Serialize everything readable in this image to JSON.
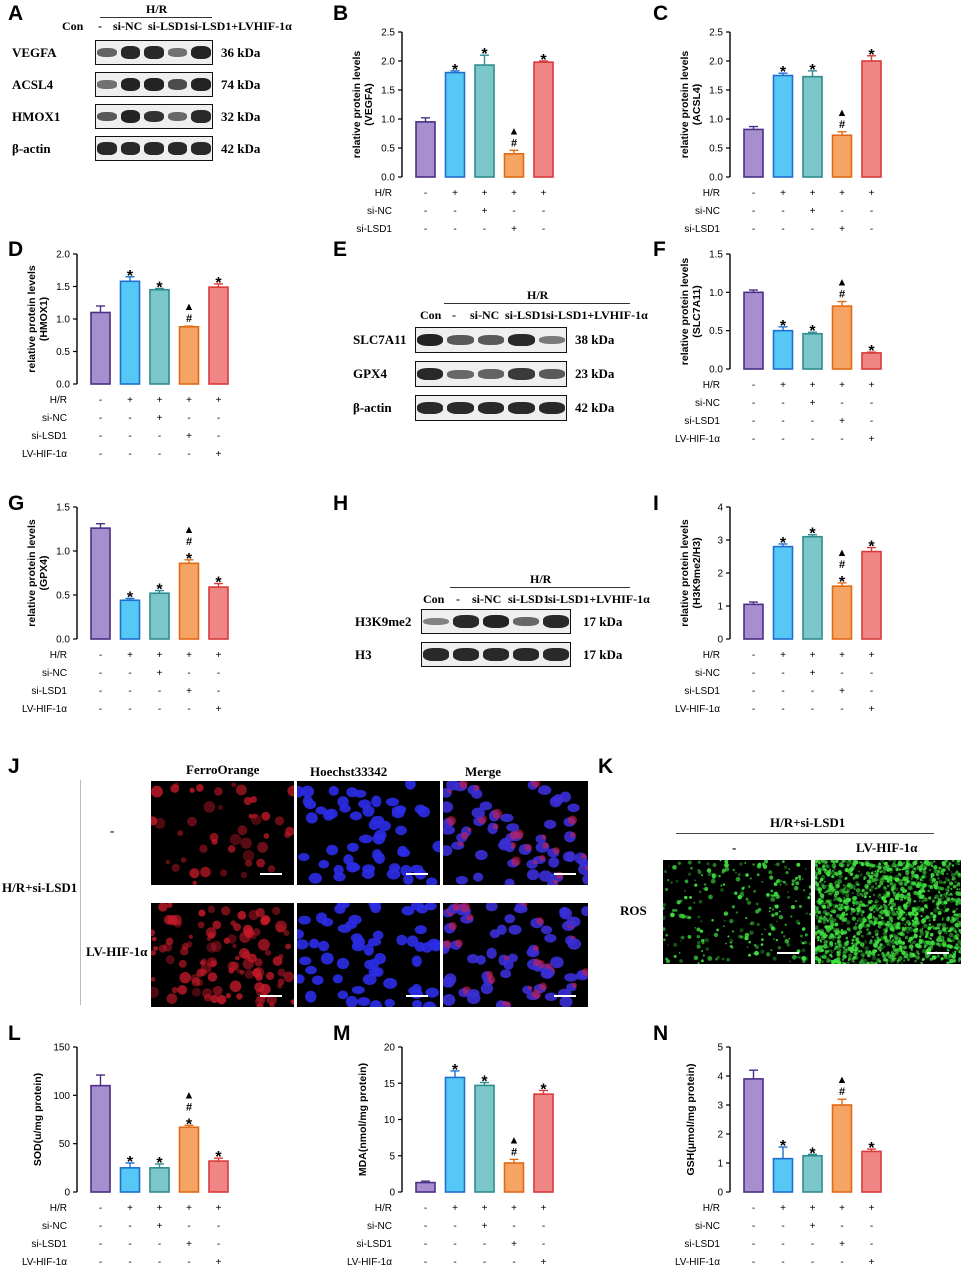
{
  "panel_letters": [
    "A",
    "B",
    "C",
    "D",
    "E",
    "F",
    "G",
    "H",
    "I",
    "J",
    "K",
    "L",
    "M",
    "N"
  ],
  "blots": {
    "A": {
      "group_header": "H/R",
      "lanes": [
        "Con",
        "-",
        "si-NC",
        "si-LSD1",
        "si-LSD1+LVHIF-1α"
      ],
      "rows": [
        {
          "name": "VEGFA",
          "kda": "36 kDa",
          "intensity": [
            0.55,
            0.9,
            0.9,
            0.45,
            0.95
          ]
        },
        {
          "name": "ACSL4",
          "kda": "74 kDa",
          "intensity": [
            0.45,
            0.95,
            0.95,
            0.7,
            0.95
          ]
        },
        {
          "name": "HMOX1",
          "kda": "32 kDa",
          "intensity": [
            0.6,
            0.95,
            0.85,
            0.5,
            0.9
          ]
        },
        {
          "name": "β-actin",
          "kda": "42 kDa",
          "intensity": [
            0.9,
            0.9,
            0.9,
            0.9,
            0.9
          ]
        }
      ]
    },
    "E": {
      "group_header": "H/R",
      "lanes": [
        "Con",
        "-",
        "si-NC",
        "si-LSD1",
        "si-LSD1+LVHIF-1α"
      ],
      "rows": [
        {
          "name": "SLC7A11",
          "kda": "38 kDa",
          "intensity": [
            0.95,
            0.6,
            0.6,
            0.9,
            0.4
          ]
        },
        {
          "name": "GPX4",
          "kda": "23 kDa",
          "intensity": [
            0.9,
            0.5,
            0.55,
            0.8,
            0.6
          ]
        },
        {
          "name": "β-actin",
          "kda": "42 kDa",
          "intensity": [
            0.9,
            0.9,
            0.9,
            0.9,
            0.9
          ]
        }
      ]
    },
    "H": {
      "group_header": "H/R",
      "lanes": [
        "Con",
        "-",
        "si-NC",
        "si-LSD1",
        "si-LSD1+LVHIF-1α"
      ],
      "rows": [
        {
          "name": "H3K9me2",
          "kda": "17 kDa",
          "intensity": [
            0.35,
            0.9,
            0.95,
            0.5,
            0.9
          ]
        },
        {
          "name": "H3",
          "kda": "17 kDa",
          "intensity": [
            0.9,
            0.9,
            0.9,
            0.9,
            0.9
          ]
        }
      ]
    }
  },
  "conditions": {
    "row_labels": [
      "H/R",
      "si-NC",
      "si-LSD1",
      "LV-HIF-1α"
    ],
    "signs": [
      [
        "-",
        "+",
        "+",
        "+",
        "+"
      ],
      [
        "-",
        "-",
        "+",
        "-",
        "-"
      ],
      [
        "-",
        "-",
        "-",
        "+",
        "-"
      ],
      [
        "-",
        "-",
        "-",
        "-",
        "+"
      ]
    ]
  },
  "colors": {
    "bar_fill": [
      "#a78fcf",
      "#56c8f5",
      "#7cc7c9",
      "#f6a463",
      "#f08585"
    ],
    "bar_edge": [
      "#4a2f85",
      "#1e6fd0",
      "#2f8c90",
      "#e06b16",
      "#d93a3a"
    ]
  },
  "chart_data": [
    {
      "panel": "B",
      "type": "bar",
      "ylabel": "relative protein levels\n(VEGFA)",
      "ylim": [
        0,
        2.5
      ],
      "yticks": [
        "0.0",
        "0.5",
        "1.0",
        "1.5",
        "2.0",
        "2.5"
      ],
      "values": [
        0.95,
        1.8,
        1.93,
        0.4,
        1.98
      ],
      "errors": [
        0.07,
        0.03,
        0.17,
        0.06,
        0.02
      ],
      "annotations": [
        [],
        [
          "*"
        ],
        [
          "*"
        ],
        [
          "▲",
          "#"
        ],
        [
          "*"
        ]
      ]
    },
    {
      "panel": "C",
      "type": "bar",
      "ylabel": "relative protein levels\n(ACSL4)",
      "ylim": [
        0,
        2.5
      ],
      "yticks": [
        "0.0",
        "0.5",
        "1.0",
        "1.5",
        "2.0",
        "2.5"
      ],
      "values": [
        0.82,
        1.75,
        1.73,
        0.72,
        2.0
      ],
      "errors": [
        0.05,
        0.04,
        0.1,
        0.06,
        0.09
      ],
      "annotations": [
        [],
        [
          "*"
        ],
        [
          "*"
        ],
        [
          "▲",
          "#"
        ],
        [
          "*"
        ]
      ]
    },
    {
      "panel": "D",
      "type": "bar",
      "ylabel": "relative protein levels\n(HMOX1)",
      "ylim": [
        0,
        2.0
      ],
      "yticks": [
        "0.0",
        "0.5",
        "1.0",
        "1.5",
        "2.0"
      ],
      "values": [
        1.1,
        1.58,
        1.45,
        0.88,
        1.49
      ],
      "errors": [
        0.1,
        0.07,
        0.02,
        0.01,
        0.05
      ],
      "annotations": [
        [],
        [
          "*"
        ],
        [
          "*"
        ],
        [
          "▲",
          "#"
        ],
        [
          "*"
        ]
      ]
    },
    {
      "panel": "F",
      "type": "bar",
      "ylabel": "relative protein levels\n(SLC7A11)",
      "ylim": [
        0,
        1.5
      ],
      "yticks": [
        "0.0",
        "0.5",
        "1.0",
        "1.5"
      ],
      "values": [
        1.0,
        0.5,
        0.46,
        0.82,
        0.21
      ],
      "errors": [
        0.03,
        0.05,
        0.02,
        0.06,
        0.01
      ],
      "annotations": [
        [],
        [
          "*"
        ],
        [
          "*"
        ],
        [
          "▲",
          "#"
        ],
        [
          "*"
        ]
      ]
    },
    {
      "panel": "G",
      "type": "bar",
      "ylabel": "relative protein levels\n(GPX4)",
      "ylim": [
        0,
        1.5
      ],
      "yticks": [
        "0.0",
        "0.5",
        "1.0",
        "1.5"
      ],
      "values": [
        1.26,
        0.44,
        0.52,
        0.86,
        0.59
      ],
      "errors": [
        0.05,
        0.02,
        0.03,
        0.04,
        0.04
      ],
      "annotations": [
        [],
        [
          "*"
        ],
        [
          "*"
        ],
        [
          "▲",
          "#",
          "*"
        ],
        [
          "*"
        ]
      ]
    },
    {
      "panel": "I",
      "type": "bar",
      "ylabel": "relative protein levels\n(H3K9me2/H3)",
      "ylim": [
        0,
        4
      ],
      "yticks": [
        "0",
        "1",
        "2",
        "3",
        "4"
      ],
      "values": [
        1.05,
        2.8,
        3.1,
        1.6,
        2.65
      ],
      "errors": [
        0.07,
        0.08,
        0.06,
        0.1,
        0.12
      ],
      "annotations": [
        [],
        [
          "*"
        ],
        [
          "*"
        ],
        [
          "▲",
          "#",
          "*"
        ],
        [
          "*"
        ]
      ]
    },
    {
      "panel": "L",
      "type": "bar",
      "ylabel": "SOD(u/mg protein)",
      "ylim": [
        0,
        150
      ],
      "yticks": [
        "0",
        "50",
        "100",
        "150"
      ],
      "values": [
        110,
        25,
        25,
        67,
        32
      ],
      "errors": [
        11,
        5,
        4,
        2,
        3
      ],
      "annotations": [
        [],
        [
          "*"
        ],
        [
          "*"
        ],
        [
          "▲",
          "#",
          "*"
        ],
        [
          "*"
        ]
      ]
    },
    {
      "panel": "M",
      "type": "bar",
      "ylabel": "MDA(nmol/mg protein)",
      "ylim": [
        0,
        20
      ],
      "yticks": [
        "0",
        "5",
        "10",
        "15",
        "20"
      ],
      "values": [
        1.3,
        15.8,
        14.7,
        4.0,
        13.5
      ],
      "errors": [
        0.2,
        0.9,
        0.4,
        0.5,
        0.5
      ],
      "annotations": [
        [],
        [
          "*"
        ],
        [
          "*"
        ],
        [
          "▲",
          "#"
        ],
        [
          "*"
        ]
      ]
    },
    {
      "panel": "N",
      "type": "bar",
      "ylabel": "GSH(μmol/mg protein)",
      "ylim": [
        0,
        5
      ],
      "yticks": [
        "0",
        "1",
        "2",
        "3",
        "4",
        "5"
      ],
      "values": [
        3.9,
        1.15,
        1.25,
        3.0,
        1.4
      ],
      "errors": [
        0.3,
        0.4,
        0.05,
        0.2,
        0.08
      ],
      "annotations": [
        [],
        [
          "*"
        ],
        [
          "*"
        ],
        [
          "▲",
          "#"
        ],
        [
          "*"
        ]
      ]
    }
  ],
  "panel_J": {
    "columns": [
      "FerroOrange",
      "Hoechst33342",
      "Merge"
    ],
    "rows": [
      "-",
      "LV-HIF-1α"
    ],
    "side_label": "H/R+si-LSD1"
  },
  "panel_K": {
    "header": "H/R+si-LSD1",
    "columns": [
      "-",
      "LV-HIF-1α"
    ],
    "row_label": "ROS"
  }
}
